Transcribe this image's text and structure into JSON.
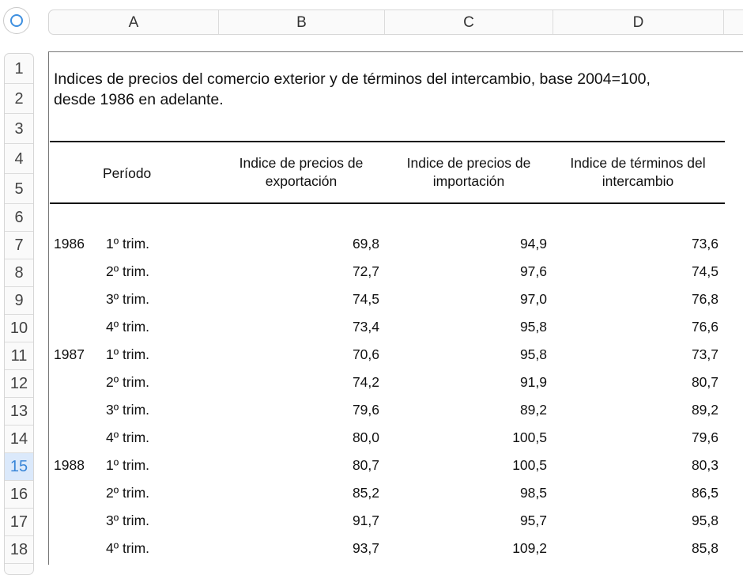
{
  "columns": [
    "A",
    "B",
    "C",
    "D"
  ],
  "row_numbers": [
    "1",
    "2",
    "3",
    "4",
    "5",
    "6",
    "7",
    "8",
    "9",
    "10",
    "11",
    "12",
    "13",
    "14",
    "15",
    "16",
    "17",
    "18"
  ],
  "selected_row": "15",
  "title": "Indices de precios del comercio exterior y de términos del intercambio, base 2004=100, desde 1986 en adelante.",
  "table": {
    "headers": {
      "periodo": "Período",
      "export": "Indice de precios de exportación",
      "import": "Indice de precios de importación",
      "terms": "Indice de términos del intercambio"
    },
    "rows": [
      {
        "year": "1986",
        "period": "1º trim.",
        "export": "69,8",
        "import": "94,9",
        "terms": "73,6"
      },
      {
        "year": "",
        "period": "2º trim.",
        "export": "72,7",
        "import": "97,6",
        "terms": "74,5"
      },
      {
        "year": "",
        "period": "3º trim.",
        "export": "74,5",
        "import": "97,0",
        "terms": "76,8"
      },
      {
        "year": "",
        "period": "4º trim.",
        "export": "73,4",
        "import": "95,8",
        "terms": "76,6"
      },
      {
        "year": "1987",
        "period": "1º trim.",
        "export": "70,6",
        "import": "95,8",
        "terms": "73,7"
      },
      {
        "year": "",
        "period": "2º trim.",
        "export": "74,2",
        "import": "91,9",
        "terms": "80,7"
      },
      {
        "year": "",
        "period": "3º trim.",
        "export": "79,6",
        "import": "89,2",
        "terms": "89,2"
      },
      {
        "year": "",
        "period": "4º trim.",
        "export": "80,0",
        "import": "100,5",
        "terms": "79,6"
      },
      {
        "year": "1988",
        "period": "1º trim.",
        "export": "80,7",
        "import": "100,5",
        "terms": "80,3"
      },
      {
        "year": "",
        "period": "2º trim.",
        "export": "85,2",
        "import": "98,5",
        "terms": "86,5"
      },
      {
        "year": "",
        "period": "3º trim.",
        "export": "91,7",
        "import": "95,7",
        "terms": "95,8"
      },
      {
        "year": "",
        "period": "4º trim.",
        "export": "93,7",
        "import": "109,2",
        "terms": "85,8"
      }
    ]
  },
  "colors": {
    "accent": "#3a86d8",
    "selected_row_bg": "#dbe9fb"
  }
}
